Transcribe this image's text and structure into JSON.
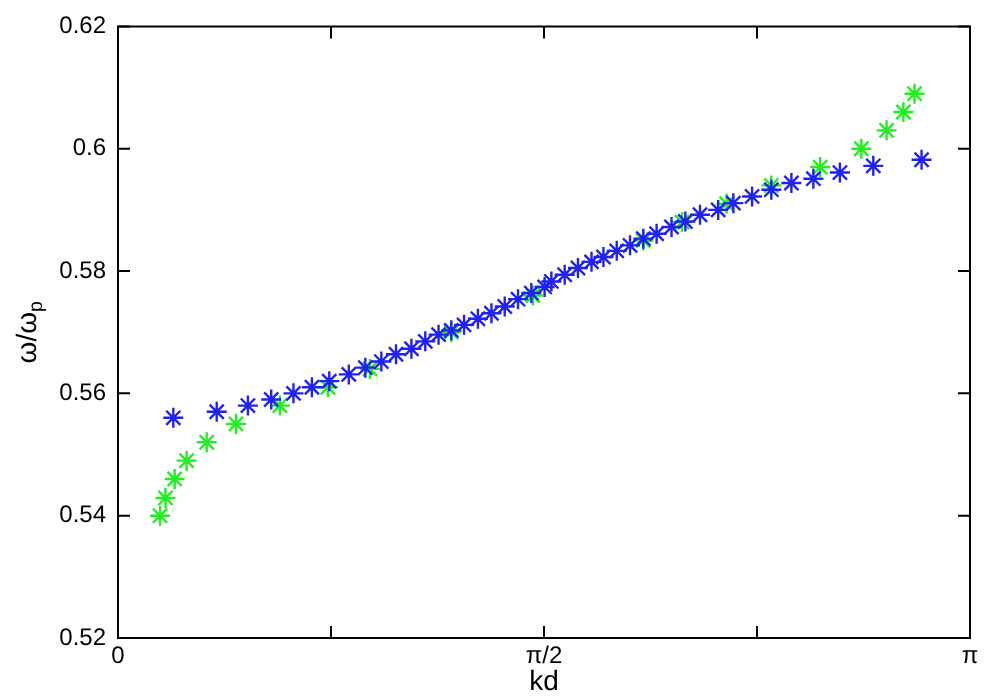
{
  "chart_data": {
    "type": "scatter",
    "xlabel": "kd",
    "ylabel": "ω/ω$_{p}$",
    "marker": "cross",
    "grid": false,
    "legend": false,
    "xlim": [
      0,
      3.1416
    ],
    "xticks": [
      0,
      {
        "value": 0.7854,
        "label": null
      },
      {
        "value": 1.5708,
        "label": "π/2"
      },
      {
        "value": 2.3562,
        "label": null
      },
      {
        "value": 3.1416,
        "label": "π"
      }
    ],
    "ylim": [
      0.52,
      0.62
    ],
    "yticks": [
      0.52,
      0.54,
      0.56,
      0.58,
      0.6,
      0.62
    ],
    "series": [
      {
        "color": "#22ee22",
        "x": [
          0.155,
          0.175,
          0.209,
          0.253,
          0.327,
          0.435,
          0.597,
          0.774,
          0.929,
          1.082,
          1.229,
          1.379,
          1.53,
          1.79,
          1.937,
          2.08,
          2.244,
          2.409,
          2.589,
          2.741,
          2.834,
          2.896,
          2.937
        ],
        "values": [
          0.54,
          0.5429,
          0.546,
          0.549,
          0.552,
          0.555,
          0.558,
          0.561,
          0.564,
          null,
          0.57,
          null,
          0.576,
          null,
          0.585,
          0.588,
          0.591,
          0.594,
          0.597,
          0.6,
          0.603,
          0.606,
          0.609
        ]
      },
      {
        "color": "#2222ee",
        "x": [
          0.204,
          0.364,
          0.479,
          0.565,
          0.647,
          0.715,
          0.779,
          0.851,
          0.912,
          0.971,
          1.025,
          1.082,
          1.133,
          1.182,
          1.229,
          1.276,
          1.327,
          1.377,
          1.426,
          1.475,
          1.524,
          1.573,
          1.598,
          1.647,
          1.696,
          1.746,
          1.79,
          1.839,
          1.888,
          1.937,
          1.986,
          2.041,
          2.092,
          2.146,
          2.213,
          2.269,
          2.338,
          2.409,
          2.483,
          2.564,
          2.662,
          2.785,
          2.963
        ],
        "values": [
          0.556,
          0.557,
          0.558,
          0.559,
          0.56,
          0.561,
          0.562,
          0.5631,
          0.5642,
          0.5652,
          0.5664,
          0.5673,
          0.5685,
          0.5696,
          0.5703,
          0.5712,
          0.5722,
          0.5731,
          0.5742,
          0.5754,
          0.5764,
          0.5774,
          0.5783,
          0.5794,
          0.5805,
          0.5815,
          0.5823,
          0.5833,
          0.5842,
          0.5853,
          0.5861,
          0.5872,
          0.5881,
          0.5892,
          0.59,
          0.5911,
          0.5922,
          0.5933,
          0.5944,
          0.5951,
          0.5961,
          0.5972,
          0.5982
        ]
      }
    ]
  }
}
